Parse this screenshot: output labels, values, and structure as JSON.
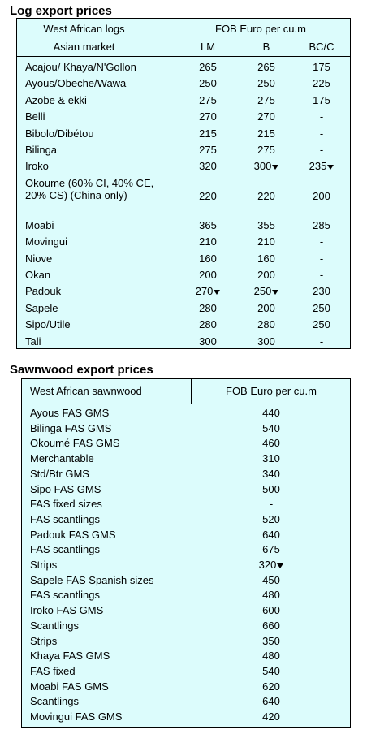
{
  "log_table": {
    "title": "Log export prices",
    "header": {
      "name_line1": "West African logs",
      "name_line2": "Asian market",
      "group": "FOB Euro per cu.m",
      "columns": [
        "LM",
        "B",
        "BC/C"
      ]
    },
    "rows": [
      [
        "Acajou/ Khaya/N'Gollon",
        "265",
        "265",
        "175"
      ],
      [
        "Ayous/Obeche/Wawa",
        "250",
        "250",
        "225"
      ],
      [
        "Azobe & ekki",
        "275",
        "275",
        "175"
      ],
      [
        "Belli",
        "270",
        "270",
        "-"
      ],
      [
        "Bibolo/Dibétou",
        "215",
        "215",
        "-"
      ],
      [
        "Bilinga",
        "275",
        "275",
        "-"
      ],
      [
        "Iroko",
        "320",
        {
          "text": "300",
          "arrow": "down"
        },
        {
          "text": "235",
          "arrow": "down"
        }
      ],
      [
        "Okoume (60% CI, 40% CE, 20% CS) (China only)",
        "220",
        "220",
        "200"
      ],
      [
        "Moabi",
        "365",
        "355",
        "285"
      ],
      [
        "Movingui",
        "210",
        "210",
        "-"
      ],
      [
        "Niove",
        "160",
        "160",
        "-"
      ],
      [
        "Okan",
        "200",
        "200",
        "-"
      ],
      [
        "Padouk",
        {
          "text": "270",
          "arrow": "down"
        },
        {
          "text": "250",
          "arrow": "down"
        },
        "230"
      ],
      [
        "Sapele",
        "280",
        "200",
        "250"
      ],
      [
        "Sipo/Utile",
        "280",
        "280",
        "250"
      ],
      [
        "Tali",
        "300",
        "300",
        "-"
      ]
    ]
  },
  "sawn_table": {
    "title": "Sawnwood export prices",
    "header": {
      "name": "West African sawnwood",
      "price": "FOB Euro per cu.m"
    },
    "rows": [
      [
        "Ayous FAS GMS",
        "440"
      ],
      [
        "Bilinga FAS GMS",
        "540"
      ],
      [
        "Okoumé FAS GMS",
        "460"
      ],
      [
        "Merchantable",
        "310"
      ],
      [
        "Std/Btr GMS",
        "340"
      ],
      [
        "Sipo FAS GMS",
        "500"
      ],
      [
        "FAS fixed sizes",
        "-"
      ],
      [
        "FAS scantlings",
        "520"
      ],
      [
        "Padouk FAS GMS",
        "640"
      ],
      [
        "FAS scantlings",
        "675"
      ],
      [
        "Strips",
        {
          "text": "320",
          "arrow": "down"
        }
      ],
      [
        "Sapele FAS Spanish sizes",
        "450"
      ],
      [
        "FAS scantlings",
        "480"
      ],
      [
        "Iroko FAS GMS",
        "600"
      ],
      [
        "Scantlings",
        "660"
      ],
      [
        "Strips",
        "350"
      ],
      [
        "Khaya FAS GMS",
        "480"
      ],
      [
        "FAS fixed",
        "540"
      ],
      [
        "Moabi FAS GMS",
        "620"
      ],
      [
        "Scantlings",
        "640"
      ],
      [
        "Movingui FAS GMS",
        "420"
      ]
    ]
  }
}
